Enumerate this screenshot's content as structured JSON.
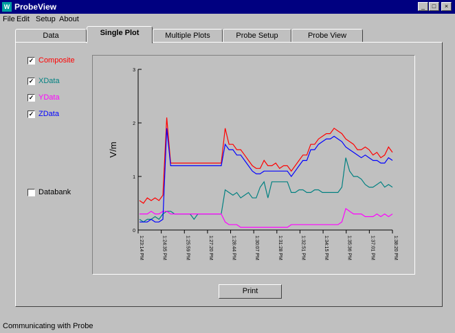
{
  "window": {
    "title": "ProbeView",
    "icon_letter": "W",
    "minimize": "_",
    "maximize": "□",
    "close": "×"
  },
  "menu": [
    {
      "label": "File"
    },
    {
      "label": "Edit"
    },
    {
      "label": "Setup"
    },
    {
      "label": "About"
    }
  ],
  "tabs": [
    {
      "label": "Data"
    },
    {
      "label": "Single Plot"
    },
    {
      "label": "Multiple Plots"
    },
    {
      "label": "Probe Setup"
    },
    {
      "label": "Probe View"
    }
  ],
  "active_tab": 1,
  "checkboxes": [
    {
      "label": "Composite",
      "checked": true,
      "color": "#ff0000"
    },
    {
      "label": "XData",
      "checked": true,
      "color": "#008080"
    },
    {
      "label": "YData",
      "checked": true,
      "color": "#ff00ff"
    },
    {
      "label": "ZData",
      "checked": true,
      "color": "#0000ff"
    },
    {
      "label": "Databank",
      "checked": false,
      "color": "#000000"
    }
  ],
  "print_button": "Print",
  "status": "Communicating with Probe",
  "chart_data": {
    "type": "line",
    "ylabel": "V/m",
    "ylim": [
      0,
      3
    ],
    "yticks": [
      "0",
      "1",
      "2",
      "3"
    ],
    "xtick_labels": [
      "1:23:14 PM",
      "1:24:35 PM",
      "1:25:59 PM",
      "1:27:20 PM",
      "1:28:44 PM",
      "1:30:07 PM",
      "1:31:28 PM",
      "1:32:51 PM",
      "1:34:15 PM",
      "1:35:36 PM",
      "1:37:01 PM",
      "1:38:20 PM"
    ],
    "series": [
      {
        "name": "Composite",
        "color": "#ff0000",
        "values": [
          0.55,
          0.5,
          0.6,
          0.55,
          0.6,
          0.55,
          0.65,
          2.1,
          1.25,
          1.25,
          1.25,
          1.25,
          1.25,
          1.25,
          1.25,
          1.25,
          1.25,
          1.25,
          1.25,
          1.25,
          1.25,
          1.25,
          1.9,
          1.6,
          1.6,
          1.5,
          1.5,
          1.4,
          1.3,
          1.2,
          1.15,
          1.15,
          1.3,
          1.2,
          1.2,
          1.25,
          1.15,
          1.2,
          1.2,
          1.1,
          1.2,
          1.3,
          1.4,
          1.4,
          1.6,
          1.6,
          1.7,
          1.75,
          1.8,
          1.8,
          1.9,
          1.85,
          1.8,
          1.7,
          1.65,
          1.6,
          1.5,
          1.5,
          1.55,
          1.5,
          1.4,
          1.45,
          1.35,
          1.4,
          1.55,
          1.45
        ]
      },
      {
        "name": "XData",
        "color": "#008080",
        "values": [
          0.2,
          0.15,
          0.2,
          0.2,
          0.25,
          0.2,
          0.3,
          0.35,
          0.35,
          0.3,
          0.3,
          0.3,
          0.3,
          0.3,
          0.2,
          0.3,
          0.3,
          0.3,
          0.3,
          0.3,
          0.3,
          0.3,
          0.75,
          0.7,
          0.65,
          0.7,
          0.6,
          0.65,
          0.7,
          0.6,
          0.6,
          0.8,
          0.9,
          0.6,
          0.9,
          0.9,
          0.9,
          0.9,
          0.9,
          0.7,
          0.7,
          0.75,
          0.75,
          0.7,
          0.7,
          0.75,
          0.75,
          0.7,
          0.7,
          0.7,
          0.7,
          0.7,
          0.8,
          1.35,
          1.1,
          1.0,
          1.0,
          0.95,
          0.85,
          0.8,
          0.8,
          0.85,
          0.9,
          0.8,
          0.85,
          0.8
        ]
      },
      {
        "name": "YData",
        "color": "#ff00ff",
        "values": [
          0.3,
          0.3,
          0.3,
          0.35,
          0.3,
          0.3,
          0.35,
          0.35,
          0.3,
          0.3,
          0.3,
          0.3,
          0.3,
          0.3,
          0.3,
          0.3,
          0.3,
          0.3,
          0.3,
          0.3,
          0.3,
          0.3,
          0.15,
          0.1,
          0.1,
          0.1,
          0.05,
          0.05,
          0.05,
          0.05,
          0.05,
          0.05,
          0.05,
          0.05,
          0.05,
          0.05,
          0.05,
          0.05,
          0.05,
          0.1,
          0.1,
          0.1,
          0.1,
          0.1,
          0.1,
          0.1,
          0.1,
          0.1,
          0.1,
          0.1,
          0.1,
          0.1,
          0.15,
          0.4,
          0.35,
          0.3,
          0.3,
          0.3,
          0.25,
          0.25,
          0.25,
          0.3,
          0.25,
          0.3,
          0.25,
          0.3
        ]
      },
      {
        "name": "ZData",
        "color": "#0000ff",
        "values": [
          0.15,
          0.15,
          0.15,
          0.2,
          0.15,
          0.15,
          0.2,
          1.9,
          1.2,
          1.2,
          1.2,
          1.2,
          1.2,
          1.2,
          1.2,
          1.2,
          1.2,
          1.2,
          1.2,
          1.2,
          1.2,
          1.2,
          1.6,
          1.5,
          1.5,
          1.4,
          1.4,
          1.3,
          1.2,
          1.1,
          1.05,
          1.05,
          1.1,
          1.1,
          1.1,
          1.1,
          1.1,
          1.1,
          1.1,
          1.0,
          1.1,
          1.2,
          1.3,
          1.3,
          1.5,
          1.5,
          1.6,
          1.65,
          1.7,
          1.7,
          1.75,
          1.7,
          1.65,
          1.55,
          1.5,
          1.45,
          1.4,
          1.35,
          1.4,
          1.35,
          1.3,
          1.3,
          1.25,
          1.25,
          1.35,
          1.3
        ]
      }
    ]
  }
}
